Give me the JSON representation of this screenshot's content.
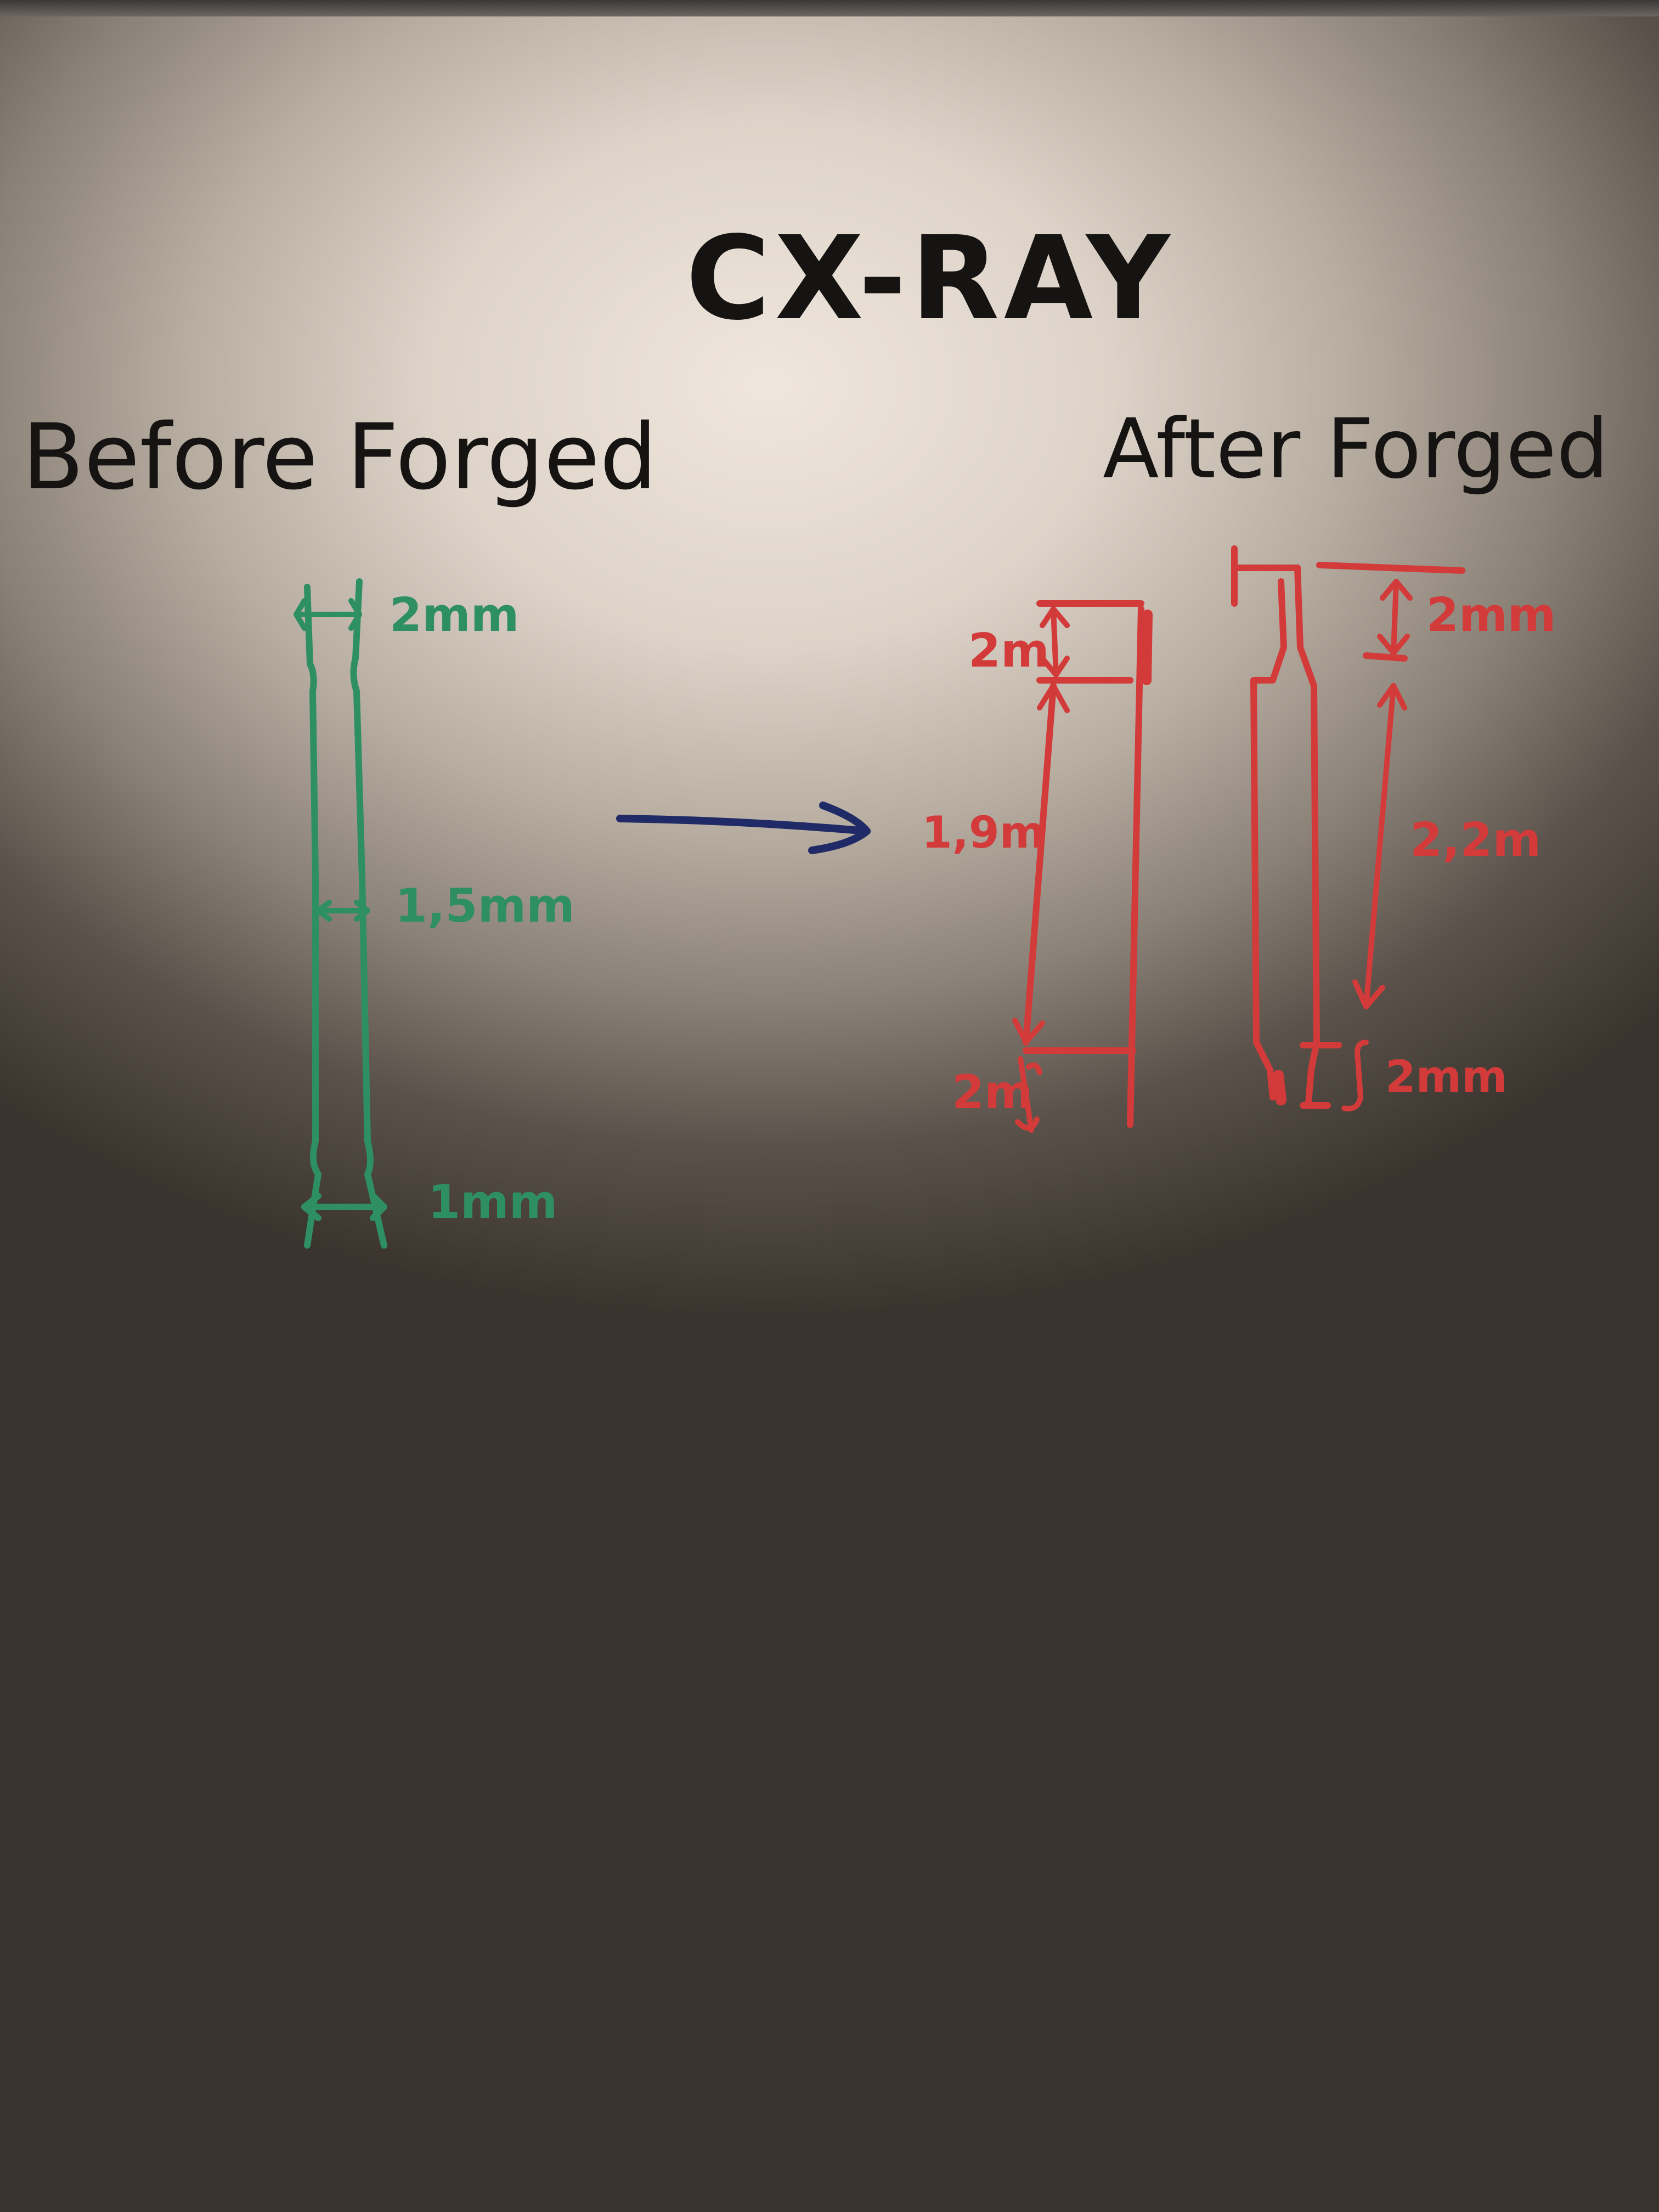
{
  "title": "CX-RAY",
  "before": {
    "heading": "Before Forged",
    "dims": {
      "top": "2mm",
      "middle": "1,5mm",
      "bottom": "1mm"
    }
  },
  "after": {
    "heading": "After Forged",
    "left_part": {
      "top": "2m",
      "middle": "1,9m",
      "bottom": "2m"
    },
    "right_part": {
      "top": "2mm",
      "middle": "2,2m",
      "bottom": "2mm"
    }
  },
  "colors": {
    "title_ink": "#151413",
    "before_ink": "#2e8f63",
    "after_ink": "#d23b3a",
    "arrow_ink": "#1f2a66"
  }
}
